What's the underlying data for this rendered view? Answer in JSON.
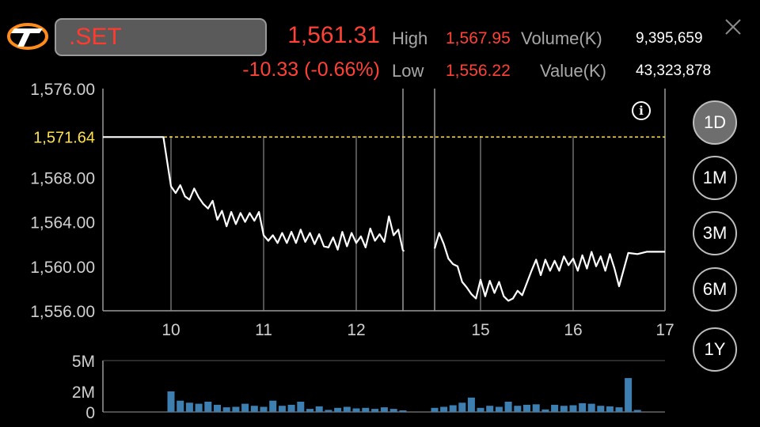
{
  "symbol": ".SET",
  "quote": {
    "price": "1,561.31",
    "change": "-10.33 (-0.66%)",
    "high_label": "High",
    "high": "1,567.95",
    "low_label": "Low",
    "low": "1,556.22",
    "volume_label": "Volume(K)",
    "volume": "9,395,659",
    "value_label": "Value(K)",
    "value": "43,323,878"
  },
  "ranges": [
    "1D",
    "1M",
    "3M",
    "6M",
    "1Y"
  ],
  "active_range": "1D",
  "info_symbol": "i",
  "colors": {
    "negative": "#ff4136",
    "reference_line": "#ffe14d",
    "volume_bar": "#3d7fb0",
    "price_line": "#ffffff"
  },
  "chart_data": [
    {
      "type": "line",
      "ylim": [
        1556,
        1576
      ],
      "yticks": [
        "1,556.00",
        "1,560.00",
        "1,564.00",
        "1,568.00",
        "1,576.00"
      ],
      "ytick_values": [
        1556,
        1560,
        1564,
        1568,
        1576
      ],
      "reference": {
        "label": "1,571.64",
        "value": 1571.64
      },
      "xticks": [
        "10",
        "11",
        "12",
        "15",
        "16",
        "17"
      ],
      "xtick_values": [
        10,
        11,
        12,
        15,
        16,
        17
      ],
      "series": [
        {
          "segment": "morning",
          "x": [
            9.1,
            9.9,
            10.0,
            10.05,
            10.1,
            10.15,
            10.2,
            10.25,
            10.3,
            10.35,
            10.4,
            10.45,
            10.5,
            10.55,
            10.6,
            10.65,
            10.7,
            10.75,
            10.8,
            10.85,
            10.9,
            10.95,
            11.0,
            11.05,
            11.1,
            11.15,
            11.2,
            11.25,
            11.3,
            11.35,
            11.4,
            11.45,
            11.5,
            11.55,
            11.6,
            11.65,
            11.7,
            11.75,
            11.8,
            11.85,
            11.9,
            11.95,
            12.0,
            12.05,
            12.1,
            12.15,
            12.2,
            12.25,
            12.3,
            12.35,
            12.4,
            12.45,
            12.5
          ],
          "y": [
            1571.64,
            1571.64,
            1567.2,
            1566.6,
            1567.3,
            1566.3,
            1566.0,
            1567.0,
            1566.2,
            1565.6,
            1565.2,
            1565.9,
            1564.2,
            1565.0,
            1563.6,
            1564.9,
            1563.8,
            1564.8,
            1564.0,
            1564.8,
            1564.1,
            1564.9,
            1562.8,
            1562.3,
            1562.8,
            1562.1,
            1563.0,
            1562.1,
            1563.1,
            1562.1,
            1563.3,
            1562.2,
            1563.0,
            1562.0,
            1562.9,
            1561.8,
            1561.7,
            1562.6,
            1561.5,
            1563.1,
            1561.8,
            1563.0,
            1562.1,
            1562.7,
            1561.7,
            1563.4,
            1562.3,
            1562.9,
            1562.2,
            1564.5,
            1562.8,
            1563.3,
            1561.4
          ]
        },
        {
          "segment": "after-break",
          "x": [
            12.5,
            12.58
          ],
          "y": [
            1561.4,
            1561.4
          ]
        },
        {
          "segment": "afternoon",
          "x": [
            14.5,
            14.55,
            14.6,
            14.65,
            14.7,
            14.75,
            14.8,
            14.85,
            14.9,
            14.95,
            15.0,
            15.05,
            15.1,
            15.15,
            15.2,
            15.25,
            15.3,
            15.35,
            15.4,
            15.45,
            15.5,
            15.55,
            15.6,
            15.65,
            15.7,
            15.75,
            15.8,
            15.85,
            15.9,
            15.95,
            16.0,
            16.05,
            16.1,
            16.15,
            16.2,
            16.25,
            16.3,
            16.35,
            16.4,
            16.45,
            16.5,
            16.6,
            16.7,
            16.8,
            17.0
          ],
          "y": [
            1561.6,
            1563.0,
            1562.0,
            1560.7,
            1560.2,
            1560.0,
            1558.6,
            1558.1,
            1557.5,
            1557.1,
            1558.8,
            1557.3,
            1558.7,
            1557.6,
            1558.6,
            1557.3,
            1556.9,
            1557.1,
            1557.8,
            1557.4,
            1558.5,
            1559.6,
            1560.6,
            1559.2,
            1560.6,
            1559.6,
            1560.5,
            1559.6,
            1560.9,
            1560.1,
            1560.7,
            1559.6,
            1561.0,
            1559.8,
            1561.3,
            1560.0,
            1560.9,
            1559.6,
            1561.1,
            1559.8,
            1558.2,
            1561.2,
            1561.1,
            1561.31,
            1561.31
          ]
        }
      ]
    },
    {
      "type": "bar",
      "ylim": [
        0,
        5
      ],
      "yticks": [
        "5M",
        "2M",
        "0"
      ],
      "ytick_values": [
        5,
        2,
        0
      ],
      "series": [
        {
          "segment": "morning",
          "x": [
            10.0,
            10.1,
            10.2,
            10.3,
            10.4,
            10.5,
            10.6,
            10.7,
            10.8,
            10.9,
            11.0,
            11.1,
            11.2,
            11.3,
            11.4,
            11.5,
            11.6,
            11.7,
            11.8,
            11.9,
            12.0,
            12.1,
            12.2,
            12.3,
            12.4,
            12.5
          ],
          "values": [
            2.0,
            1.1,
            0.9,
            0.8,
            1.0,
            0.7,
            0.45,
            0.5,
            0.8,
            0.6,
            0.5,
            1.1,
            0.6,
            0.7,
            1.0,
            0.3,
            0.55,
            0.2,
            0.4,
            0.5,
            0.35,
            0.4,
            0.3,
            0.45,
            0.3,
            0.15
          ]
        },
        {
          "segment": "afternoon",
          "x": [
            14.5,
            14.6,
            14.7,
            14.8,
            14.9,
            15.0,
            15.1,
            15.2,
            15.3,
            15.4,
            15.5,
            15.6,
            15.7,
            15.8,
            15.9,
            16.0,
            16.1,
            16.2,
            16.3,
            16.4,
            16.5,
            16.6,
            16.7
          ],
          "values": [
            0.4,
            0.5,
            0.65,
            0.9,
            1.4,
            0.4,
            0.6,
            0.5,
            1.0,
            0.6,
            0.7,
            0.75,
            0.25,
            0.7,
            0.6,
            0.65,
            0.85,
            0.8,
            0.6,
            0.55,
            0.45,
            3.3,
            0.2
          ]
        }
      ]
    }
  ]
}
